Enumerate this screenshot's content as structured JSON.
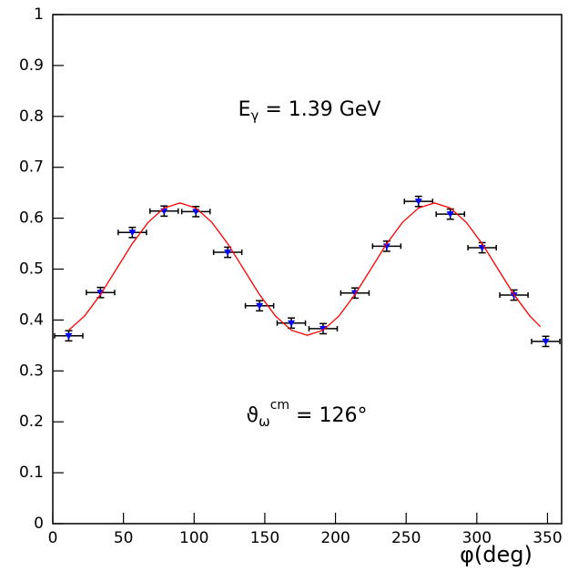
{
  "chart_data": {
    "type": "scatter",
    "xlabel": "φ(deg)",
    "annotations": [
      {
        "base": "E",
        "sub": "γ",
        "rest": " = 1.39 GeV"
      },
      {
        "base": "ϑ",
        "sub": "ω",
        "sup": "cm",
        "rest": " = 126°"
      }
    ],
    "xlim": [
      0,
      360
    ],
    "ylim": [
      0,
      1
    ],
    "xticks": [
      0,
      50,
      100,
      150,
      200,
      250,
      300,
      350
    ],
    "yticks": [
      0,
      0.1,
      0.2,
      0.3,
      0.4,
      0.5,
      0.6,
      0.7,
      0.8,
      0.9,
      1
    ],
    "series": [
      {
        "kind": "points",
        "color": "#0000ff",
        "x": [
          11.25,
          33.75,
          56.25,
          78.75,
          101.25,
          123.75,
          146.25,
          168.75,
          191.25,
          213.75,
          236.25,
          258.75,
          281.25,
          303.75,
          326.25,
          348.75
        ],
        "values": [
          0.369,
          0.454,
          0.572,
          0.614,
          0.613,
          0.533,
          0.428,
          0.394,
          0.383,
          0.453,
          0.545,
          0.633,
          0.608,
          0.542,
          0.449,
          0.358
        ],
        "xerr": [
          10,
          10,
          10,
          10,
          10,
          10,
          10,
          10,
          10,
          10,
          10,
          10,
          10,
          10,
          10,
          10
        ],
        "yerr": [
          0.01,
          0.01,
          0.01,
          0.01,
          0.01,
          0.01,
          0.01,
          0.01,
          0.01,
          0.01,
          0.01,
          0.01,
          0.01,
          0.01,
          0.01,
          0.01
        ]
      },
      {
        "kind": "line",
        "color": "#ff0000",
        "x": [
          11.25,
          22.5,
          33.75,
          45,
          56.25,
          67.5,
          78.75,
          90,
          101.25,
          112.5,
          123.75,
          135,
          146.25,
          157.5,
          168.75,
          180,
          191.25,
          202.5,
          213.75,
          225,
          236.25,
          247.5,
          258.75,
          270,
          281.25,
          292.5,
          303.75,
          315,
          326.25,
          337.5,
          345
        ],
        "values": [
          0.38,
          0.408,
          0.45,
          0.5,
          0.55,
          0.592,
          0.62,
          0.63,
          0.62,
          0.592,
          0.55,
          0.5,
          0.45,
          0.408,
          0.38,
          0.37,
          0.38,
          0.408,
          0.45,
          0.5,
          0.55,
          0.592,
          0.62,
          0.63,
          0.62,
          0.592,
          0.55,
          0.5,
          0.45,
          0.408,
          0.387
        ]
      }
    ]
  }
}
